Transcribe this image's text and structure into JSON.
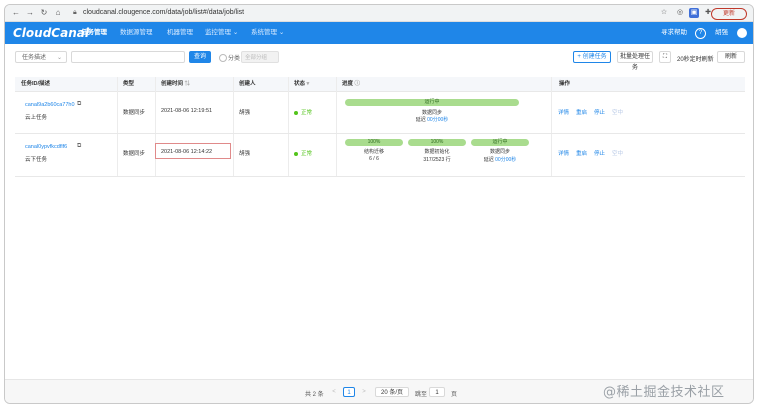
{
  "browser": {
    "url": "cloudcanal.clougence.com/data/job/list#/data/job/list",
    "update_label": "更新"
  },
  "header": {
    "logo": "CloudCanal",
    "nav": [
      "任务管理",
      "数据源管理",
      "机器管理",
      "监控管理",
      "系统管理"
    ],
    "help": "寻求帮助",
    "user": "胡强",
    "accent": "#1f86e8"
  },
  "toolbar": {
    "filter_select": "任务描述",
    "query_label": "查询",
    "group_label": "分类",
    "group_placeholder": "全部分组",
    "create_label": "+ 创建任务",
    "batch_label": "批量处理任务",
    "auto_refresh": "20秒定时刷新",
    "refresh_label": "刷新"
  },
  "table": {
    "columns": [
      "任务ID/描述",
      "类型",
      "创建时间",
      "创建人",
      "状态",
      "进度",
      "操作"
    ],
    "rows": [
      {
        "id": "canal9a2b60ca77h0",
        "desc": "云上任务",
        "type": "数据同步",
        "created": "2021-08-06 12:19:51",
        "creator": "胡强",
        "status": "正常",
        "progress": [
          {
            "bar": "运行中",
            "title": "数据同步",
            "detail_prefix": "延迟",
            "detail": "00分00秒"
          }
        ],
        "actions": [
          "详情",
          "重启",
          "停止",
          "空中"
        ]
      },
      {
        "id": "canal0ypvfkcdflf6",
        "desc": "云下任务",
        "type": "数据同步",
        "created": "2021-08-06 12:14:22",
        "creator": "胡强",
        "status": "正常",
        "progress": [
          {
            "bar": "100%",
            "title": "结构迁移",
            "detail_prefix": "",
            "detail": "6 / 6"
          },
          {
            "bar": "100%",
            "title": "数据初始化",
            "detail_prefix": "",
            "detail": "317/2523 行"
          },
          {
            "bar": "运行中",
            "title": "数据同步",
            "detail_prefix": "延迟",
            "detail": "00分00秒"
          }
        ],
        "actions": [
          "详情",
          "重启",
          "停止",
          "空中"
        ]
      }
    ]
  },
  "pagination": {
    "total": "共 2 条",
    "prev": "<",
    "current_page": "1",
    "next": ">",
    "page_size": "20 条/页",
    "goto_label": "跳至",
    "goto_value": "1",
    "page_unit": "页"
  },
  "watermark": "@稀土掘金技术社区"
}
